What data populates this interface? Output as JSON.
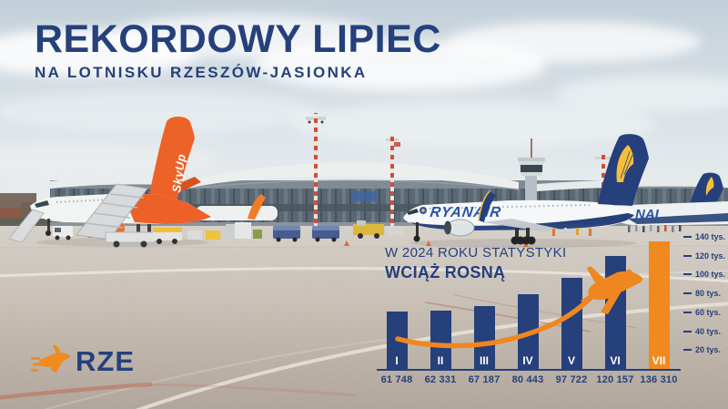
{
  "colors": {
    "navy": "#25407b",
    "orange": "#f08a1e"
  },
  "header": {
    "title": "REKORDOWY LIPIEC",
    "subtitle": "NA LOTNISKU RZESZÓW-JASIONKA"
  },
  "logo": {
    "airport_code": "RZE"
  },
  "photo": {
    "ryanair_titles": "RYANAIR",
    "ryanair_titles_partial": "NAI",
    "skyup_tail": "SkyUp"
  },
  "chart_data": {
    "type": "bar",
    "title_line1": "W 2024 ROKU STATYSTYKI",
    "title_line2": "WCIĄŻ ROSNĄ",
    "categories": [
      "I",
      "II",
      "III",
      "IV",
      "V",
      "VI",
      "VII"
    ],
    "values": [
      61748,
      62331,
      67187,
      80443,
      97722,
      120157,
      136310
    ],
    "value_labels": [
      "61 748",
      "62 331",
      "67 187",
      "80 443",
      "97 722",
      "120 157",
      "136 310"
    ],
    "highlight_index": 6,
    "ylim": [
      0,
      145000
    ],
    "y_ticks": [
      {
        "value": 20000,
        "label": "20 tys."
      },
      {
        "value": 40000,
        "label": "40 tys."
      },
      {
        "value": 60000,
        "label": "60 tys."
      },
      {
        "value": 80000,
        "label": "80 tys."
      },
      {
        "value": 100000,
        "label": "100 tys."
      },
      {
        "value": 120000,
        "label": "120 tys."
      },
      {
        "value": 140000,
        "label": "140 tys."
      }
    ],
    "grid": false,
    "legend": "none"
  }
}
